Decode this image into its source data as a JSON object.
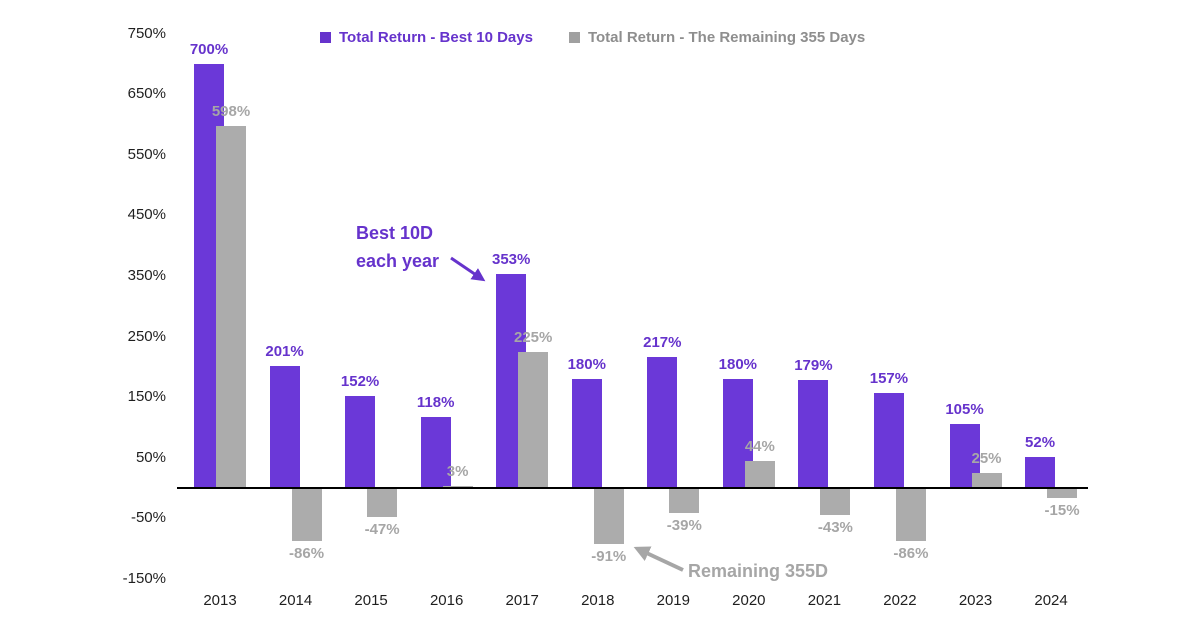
{
  "colors": {
    "purple_bar": "#6B38D8",
    "purple_text": "#6633CC",
    "gray_bar": "#ACACAC",
    "gray_text": "#A6A6A6",
    "legend_gray_text": "#8E8E8E",
    "axis_line": "#000000",
    "tick_text": "#1F1F1F"
  },
  "legend": {
    "items": [
      {
        "label": "Total Return - Best 10 Days",
        "swatch_color": "#6633CC",
        "text_color": "#6633CC"
      },
      {
        "label": "Total Return - The Remaining 355 Days",
        "swatch_color": "#A0A0A0",
        "text_color": "#8E8E8E"
      }
    ]
  },
  "annotations": {
    "best10d": {
      "line1": "Best 10D",
      "line2": "each year"
    },
    "remaining": {
      "text": "Remaining 355D"
    }
  },
  "chart_data": {
    "type": "bar",
    "title": "",
    "categories": [
      "2013",
      "2014",
      "2015",
      "2016",
      "2017",
      "2018",
      "2019",
      "2020",
      "2021",
      "2022",
      "2023",
      "2024"
    ],
    "series": [
      {
        "name": "Total Return - Best 10 Days",
        "color": "#6B38D8",
        "values": [
          700,
          201,
          152,
          118,
          353,
          180,
          217,
          180,
          179,
          157,
          105,
          52
        ]
      },
      {
        "name": "Total Return - The Remaining 355 Days",
        "color": "#ACACAC",
        "values": [
          598,
          -86,
          -47,
          3,
          225,
          -91,
          -39,
          44,
          -43,
          -86,
          25,
          -15
        ]
      }
    ],
    "value_suffix": "%",
    "y_ticks": [
      750,
      650,
      550,
      450,
      350,
      250,
      150,
      50,
      -50,
      -150
    ],
    "ylim": [
      -150,
      750
    ],
    "xlabel": "",
    "ylabel": "",
    "grid": false,
    "data_labels": true,
    "legend_position": "top"
  }
}
